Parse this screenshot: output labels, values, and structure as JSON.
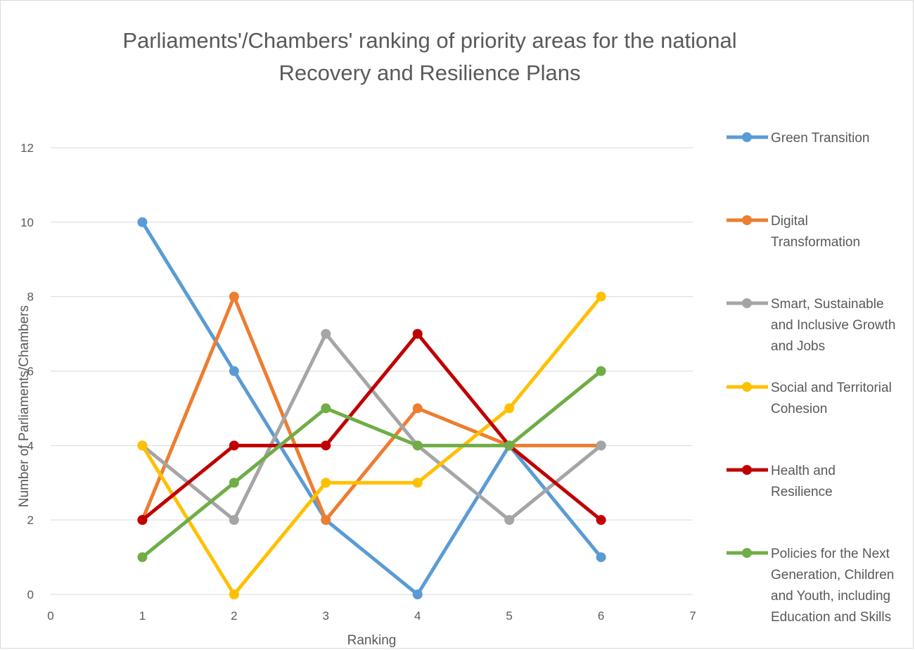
{
  "chart_data": {
    "type": "line",
    "title_line1": "Parliaments'/Chambers' ranking of priority areas for the national",
    "title_line2": "Recovery and Resilience Plans",
    "xlabel": "Ranking",
    "ylabel": "Number of Parliaments/Chambers",
    "xlim": [
      0,
      7
    ],
    "ylim": [
      0,
      12
    ],
    "x_ticks": [
      "0",
      "1",
      "2",
      "3",
      "4",
      "5",
      "6",
      "7"
    ],
    "y_ticks": [
      "0",
      "2",
      "4",
      "6",
      "8",
      "10",
      "12"
    ],
    "grid": "horizontal",
    "legend_position": "right",
    "x": [
      1,
      2,
      3,
      4,
      5,
      6
    ],
    "series": [
      {
        "name": "Green Transition",
        "legend_lines": [
          "Green Transition"
        ],
        "color": "#5B9BD5",
        "values": [
          10,
          6,
          2,
          0,
          4,
          1
        ]
      },
      {
        "name": "Digital Transformation",
        "legend_lines": [
          "Digital",
          "Transformation"
        ],
        "color": "#ED7D31",
        "values": [
          2,
          8,
          2,
          5,
          4,
          4
        ]
      },
      {
        "name": "Smart, Sustainable and Inclusive Growth and Jobs",
        "legend_lines": [
          "Smart, Sustainable",
          "and Inclusive Growth",
          "and Jobs"
        ],
        "color": "#A5A5A5",
        "values": [
          4,
          2,
          7,
          4,
          2,
          4
        ]
      },
      {
        "name": "Social and Territorial Cohesion",
        "legend_lines": [
          "Social and Territorial",
          "Cohesion"
        ],
        "color": "#FFC000",
        "values": [
          4,
          0,
          3,
          3,
          5,
          8
        ]
      },
      {
        "name": "Health and Resilience",
        "legend_lines": [
          "Health and",
          "Resilience"
        ],
        "color": "#C00000",
        "values": [
          2,
          4,
          4,
          7,
          4,
          2
        ]
      },
      {
        "name": "Policies for the Next Generation, Children and Youth, including Education and Skills",
        "legend_lines": [
          "Policies for the Next",
          "Generation, Children",
          "and Youth, including",
          "Education and Skills"
        ],
        "color": "#70AD47",
        "values": [
          1,
          3,
          5,
          4,
          4,
          6
        ]
      }
    ]
  }
}
